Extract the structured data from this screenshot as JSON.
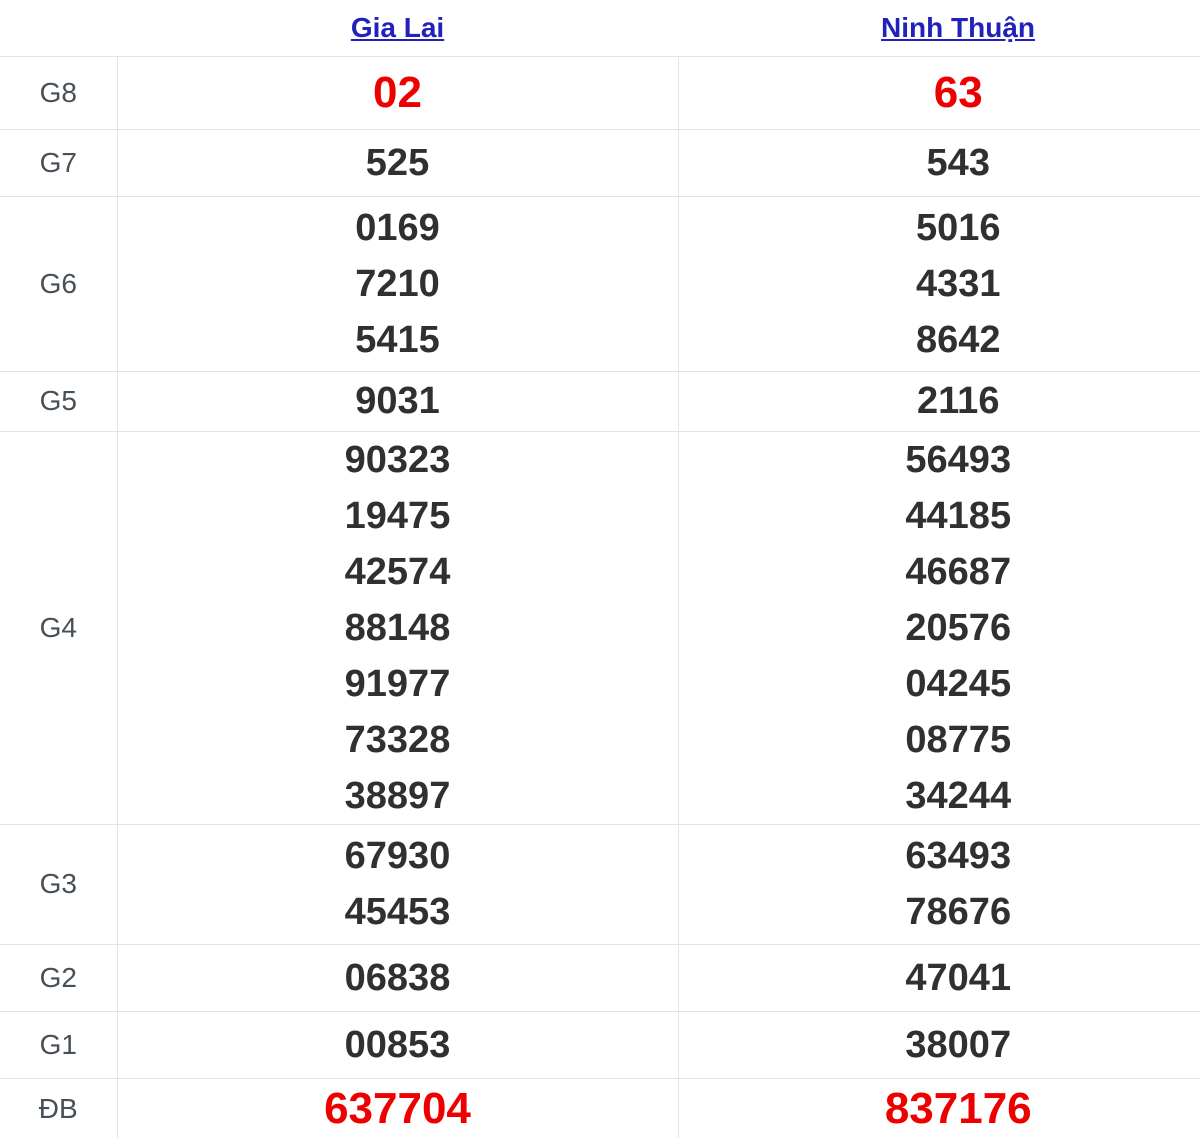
{
  "table": {
    "columns": [
      {
        "label": "Gia Lai"
      },
      {
        "label": "Ninh Thuận"
      }
    ],
    "rows": [
      {
        "label": "G8",
        "highlight": true,
        "values": [
          [
            "02"
          ],
          [
            "63"
          ]
        ]
      },
      {
        "label": "G7",
        "highlight": false,
        "values": [
          [
            "525"
          ],
          [
            "543"
          ]
        ]
      },
      {
        "label": "G6",
        "highlight": false,
        "values": [
          [
            "0169",
            "7210",
            "5415"
          ],
          [
            "5016",
            "4331",
            "8642"
          ]
        ]
      },
      {
        "label": "G5",
        "highlight": false,
        "values": [
          [
            "9031"
          ],
          [
            "2116"
          ]
        ]
      },
      {
        "label": "G4",
        "highlight": false,
        "values": [
          [
            "90323",
            "19475",
            "42574",
            "88148",
            "91977",
            "73328",
            "38897"
          ],
          [
            "56493",
            "44185",
            "46687",
            "20576",
            "04245",
            "08775",
            "34244"
          ]
        ]
      },
      {
        "label": "G3",
        "highlight": false,
        "values": [
          [
            "67930",
            "45453"
          ],
          [
            "63493",
            "78676"
          ]
        ]
      },
      {
        "label": "G2",
        "highlight": false,
        "values": [
          [
            "06838"
          ],
          [
            "47041"
          ]
        ]
      },
      {
        "label": "G1",
        "highlight": false,
        "values": [
          [
            "00853"
          ],
          [
            "38007"
          ]
        ]
      },
      {
        "label": "ĐB",
        "highlight": true,
        "values": [
          [
            "637704"
          ],
          [
            "837176"
          ]
        ]
      }
    ],
    "colors": {
      "link": "#2222bb",
      "number": "#303030",
      "highlight": "#ee0000",
      "label": "#474f57",
      "border": "#e3e3e3"
    }
  }
}
